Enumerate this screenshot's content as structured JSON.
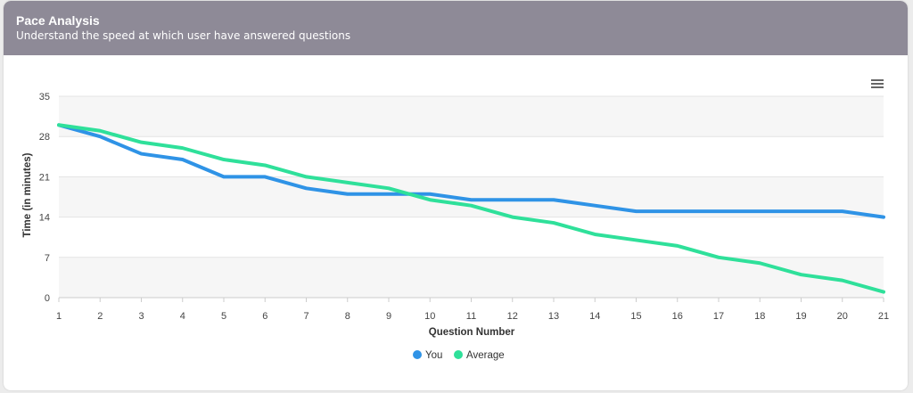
{
  "header": {
    "title": "Pace Analysis",
    "subtitle": "Understand the speed at which user have answered questions"
  },
  "menu_icon": "hamburger-menu-icon",
  "colors": {
    "header_bg": "#8e8a97",
    "you": "#2f93e6",
    "average": "#2fe09a",
    "band": "#f6f6f6",
    "grid": "#e4e4e4"
  },
  "chart_data": {
    "type": "line",
    "x": [
      1,
      2,
      3,
      4,
      5,
      6,
      7,
      8,
      9,
      10,
      11,
      12,
      13,
      14,
      15,
      16,
      17,
      18,
      19,
      20,
      21
    ],
    "xlabel": "Question Number",
    "ylabel": "Time (in minutes)",
    "ylim": [
      0,
      35
    ],
    "yticks": [
      0,
      7,
      14,
      21,
      28,
      35
    ],
    "grid": true,
    "legend": "bottom-center",
    "series": [
      {
        "name": "You",
        "color": "#2f93e6",
        "values": [
          30,
          28,
          25,
          24,
          21,
          21,
          19,
          18,
          18,
          18,
          17,
          17,
          17,
          16,
          15,
          15,
          15,
          15,
          15,
          15,
          14
        ]
      },
      {
        "name": "Average",
        "color": "#2fe09a",
        "values": [
          30,
          29,
          27,
          26,
          24,
          23,
          21,
          20,
          19,
          17,
          16,
          14,
          13,
          11,
          10,
          9,
          7,
          6,
          4,
          3,
          1
        ]
      }
    ]
  }
}
